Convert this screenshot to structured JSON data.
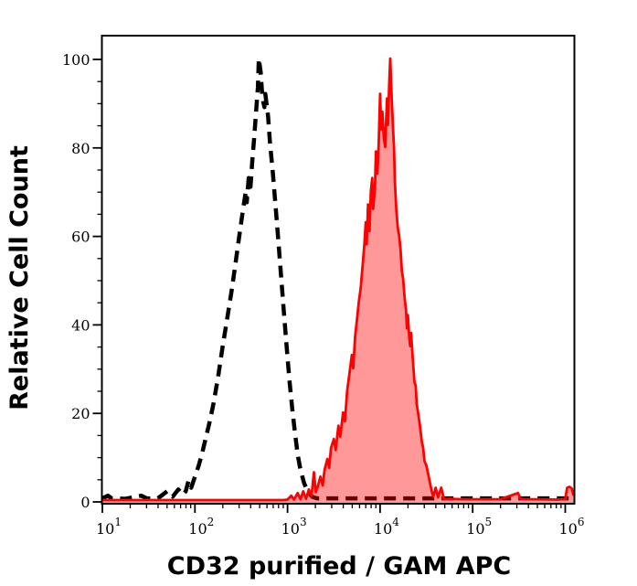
{
  "figure": {
    "background": "#ffffff",
    "frame_color": "#000000"
  },
  "chart_data": {
    "type": "area",
    "title": "",
    "xlabel": "CD32 purified / GAM APC",
    "ylabel": "Relative Cell Count",
    "x_scale": "log10",
    "x_range_log10": [
      1.0,
      6.094
    ],
    "ylim": [
      0,
      105
    ],
    "grid": "off",
    "legend": "none",
    "x_ticks": [
      {
        "base": "10",
        "exp": "1"
      },
      {
        "base": "10",
        "exp": "2"
      },
      {
        "base": "10",
        "exp": "3"
      },
      {
        "base": "10",
        "exp": "4"
      },
      {
        "base": "10",
        "exp": "5"
      },
      {
        "base": "10",
        "exp": "6"
      }
    ],
    "y_ticks": [
      "0",
      "20",
      "40",
      "60",
      "80",
      "100"
    ],
    "y_tick_values": [
      0,
      20,
      40,
      60,
      80,
      100
    ],
    "y_minor_step": 5,
    "series": [
      {
        "name": "black-dashed",
        "style": "dashed",
        "color": "#000000",
        "fill": "none",
        "peak_log10x": 2.69,
        "peak_value": 100,
        "points_log10x_value": [
          [
            1.0,
            0.6
          ],
          [
            1.06,
            1.2
          ],
          [
            1.1,
            0.6
          ],
          [
            1.25,
            0.5
          ],
          [
            1.42,
            1.2
          ],
          [
            1.48,
            0.6
          ],
          [
            1.6,
            0.6
          ],
          [
            1.7,
            2.2
          ],
          [
            1.76,
            1.0
          ],
          [
            1.82,
            2.6
          ],
          [
            1.87,
            1.4
          ],
          [
            1.9,
            2.2
          ],
          [
            1.93,
            4.5
          ],
          [
            1.96,
            3.0
          ],
          [
            2.0,
            5.5
          ],
          [
            2.04,
            8.0
          ],
          [
            2.08,
            11.0
          ],
          [
            2.12,
            14.5
          ],
          [
            2.16,
            18.0
          ],
          [
            2.2,
            22.0
          ],
          [
            2.25,
            28.0
          ],
          [
            2.3,
            35.0
          ],
          [
            2.35,
            41.5
          ],
          [
            2.4,
            48.0
          ],
          [
            2.44,
            54.0
          ],
          [
            2.48,
            60.0
          ],
          [
            2.52,
            66.0
          ],
          [
            2.55,
            70.0
          ],
          [
            2.56,
            67.5
          ],
          [
            2.58,
            73.0
          ],
          [
            2.6,
            71.0
          ],
          [
            2.62,
            77.0
          ],
          [
            2.64,
            82.0
          ],
          [
            2.66,
            88.0
          ],
          [
            2.68,
            93.5
          ],
          [
            2.69,
            100.0
          ],
          [
            2.71,
            97.0
          ],
          [
            2.73,
            91.0
          ],
          [
            2.75,
            89.0
          ],
          [
            2.76,
            92.0
          ],
          [
            2.79,
            87.0
          ],
          [
            2.81,
            81.0
          ],
          [
            2.84,
            74.5
          ],
          [
            2.87,
            67.0
          ],
          [
            2.9,
            59.0
          ],
          [
            2.93,
            51.0
          ],
          [
            2.96,
            43.0
          ],
          [
            2.99,
            35.0
          ],
          [
            3.02,
            27.5
          ],
          [
            3.05,
            21.0
          ],
          [
            3.08,
            15.5
          ],
          [
            3.11,
            10.5
          ],
          [
            3.14,
            7.0
          ],
          [
            3.18,
            4.0
          ],
          [
            3.22,
            2.0
          ],
          [
            3.27,
            0.9
          ],
          [
            3.32,
            0.6
          ],
          [
            3.6,
            0.6
          ],
          [
            4.0,
            0.6
          ],
          [
            4.4,
            0.6
          ],
          [
            4.8,
            0.6
          ],
          [
            5.2,
            0.6
          ],
          [
            5.6,
            0.6
          ],
          [
            6.0,
            0.6
          ],
          [
            6.09,
            0.6
          ]
        ]
      },
      {
        "name": "red-filled",
        "style": "solid-filled",
        "color": "#ff0000",
        "fill": "rgba(255,0,0,0.40)",
        "peak_log10x": 4.11,
        "peak_value": 100,
        "points_log10x_value": [
          [
            1.0,
            0.2
          ],
          [
            1.6,
            0.2
          ],
          [
            2.2,
            0.2
          ],
          [
            2.7,
            0.2
          ],
          [
            2.95,
            0.2
          ],
          [
            3.0,
            0.3
          ],
          [
            3.04,
            1.2
          ],
          [
            3.07,
            0.3
          ],
          [
            3.11,
            1.8
          ],
          [
            3.14,
            0.4
          ],
          [
            3.17,
            2.2
          ],
          [
            3.2,
            0.5
          ],
          [
            3.23,
            2.6
          ],
          [
            3.26,
            1.2
          ],
          [
            3.285,
            6.5
          ],
          [
            3.305,
            2.0
          ],
          [
            3.33,
            3.5
          ],
          [
            3.355,
            5.5
          ],
          [
            3.38,
            3.5
          ],
          [
            3.4,
            7.0
          ],
          [
            3.43,
            9.5
          ],
          [
            3.45,
            7.5
          ],
          [
            3.47,
            12.0
          ],
          [
            3.5,
            14.0
          ],
          [
            3.52,
            11.5
          ],
          [
            3.55,
            17.0
          ],
          [
            3.57,
            14.5
          ],
          [
            3.6,
            20.0
          ],
          [
            3.62,
            18.0
          ],
          [
            3.645,
            25.0
          ],
          [
            3.67,
            29.0
          ],
          [
            3.695,
            33.0
          ],
          [
            3.71,
            30.0
          ],
          [
            3.73,
            37.0
          ],
          [
            3.75,
            41.0
          ],
          [
            3.77,
            45.0
          ],
          [
            3.79,
            48.0
          ],
          [
            3.81,
            53.0
          ],
          [
            3.83,
            58.0
          ],
          [
            3.845,
            63.0
          ],
          [
            3.855,
            58.0
          ],
          [
            3.87,
            67.0
          ],
          [
            3.885,
            61.0
          ],
          [
            3.9,
            70.0
          ],
          [
            3.915,
            73.0
          ],
          [
            3.925,
            66.0
          ],
          [
            3.945,
            71.0
          ],
          [
            3.955,
            79.0
          ],
          [
            3.97,
            74.0
          ],
          [
            3.985,
            81.0
          ],
          [
            4.0,
            92.0
          ],
          [
            4.012,
            84.0
          ],
          [
            4.025,
            88.0
          ],
          [
            4.04,
            82.0
          ],
          [
            4.055,
            80.0
          ],
          [
            4.065,
            86.0
          ],
          [
            4.075,
            91.0
          ],
          [
            4.085,
            85.0
          ],
          [
            4.1,
            95.0
          ],
          [
            4.11,
            100.0
          ],
          [
            4.125,
            91.0
          ],
          [
            4.14,
            84.0
          ],
          [
            4.15,
            80.0
          ],
          [
            4.16,
            72.0
          ],
          [
            4.175,
            66.0
          ],
          [
            4.19,
            62.0
          ],
          [
            4.205,
            60.0
          ],
          [
            4.22,
            57.0
          ],
          [
            4.235,
            52.0
          ],
          [
            4.25,
            50.0
          ],
          [
            4.265,
            46.0
          ],
          [
            4.28,
            43.0
          ],
          [
            4.29,
            39.0
          ],
          [
            4.3,
            42.0
          ],
          [
            4.315,
            37.0
          ],
          [
            4.325,
            35.0
          ],
          [
            4.335,
            38.0
          ],
          [
            4.35,
            33.0
          ],
          [
            4.36,
            30.0
          ],
          [
            4.37,
            27.0
          ],
          [
            4.385,
            26.0
          ],
          [
            4.395,
            22.0
          ],
          [
            4.41,
            20.0
          ],
          [
            4.43,
            17.0
          ],
          [
            4.45,
            13.5
          ],
          [
            4.465,
            12.0
          ],
          [
            4.48,
            9.0
          ],
          [
            4.5,
            8.0
          ],
          [
            4.52,
            6.0
          ],
          [
            4.54,
            4.0
          ],
          [
            4.56,
            2.0
          ],
          [
            4.575,
            1.0
          ],
          [
            4.6,
            3.0
          ],
          [
            4.625,
            0.8
          ],
          [
            4.66,
            3.0
          ],
          [
            4.69,
            0.4
          ],
          [
            4.75,
            0.5
          ],
          [
            4.9,
            0.4
          ],
          [
            5.1,
            0.4
          ],
          [
            5.3,
            0.4
          ],
          [
            5.49,
            1.8
          ],
          [
            5.52,
            0.4
          ],
          [
            5.7,
            0.4
          ],
          [
            5.9,
            0.3
          ],
          [
            6.0,
            0.4
          ],
          [
            6.02,
            3.0
          ],
          [
            6.045,
            3.2
          ],
          [
            6.07,
            2.8
          ],
          [
            6.09,
            1.2
          ]
        ]
      }
    ]
  }
}
